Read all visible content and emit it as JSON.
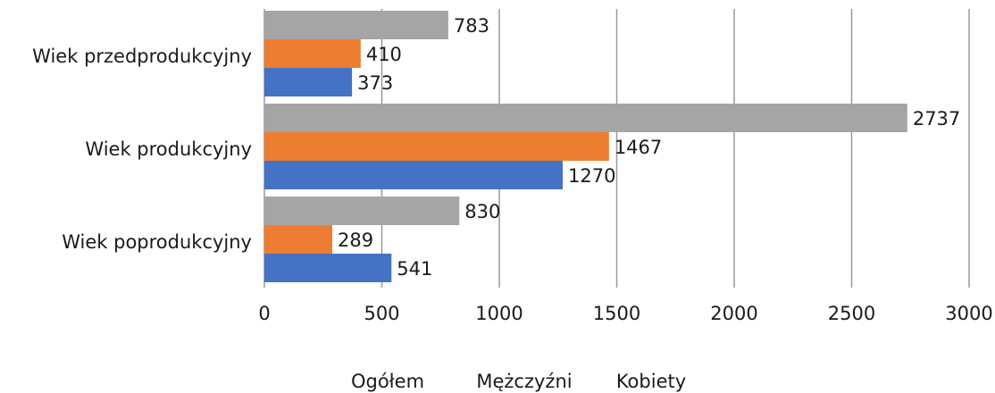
{
  "chart_data": {
    "type": "hbar",
    "categories": [
      "Wiek przedprodukcyjny",
      "Wiek produkcyjny",
      "Wiek poprodukcyjny"
    ],
    "series": [
      {
        "name": "Ogółem",
        "color": "#a5a5a5",
        "values": [
          783,
          2737,
          830
        ]
      },
      {
        "name": "Mężczyźni",
        "color": "#ed7d31",
        "values": [
          410,
          1467,
          289
        ]
      },
      {
        "name": "Kobiety",
        "color": "#4472c4",
        "values": [
          373,
          1270,
          541
        ]
      }
    ],
    "xlim": [
      0,
      3000
    ],
    "xticks": [
      0,
      500,
      1000,
      1500,
      2000,
      2500,
      3000
    ],
    "grid": true,
    "legend": "bottom"
  }
}
